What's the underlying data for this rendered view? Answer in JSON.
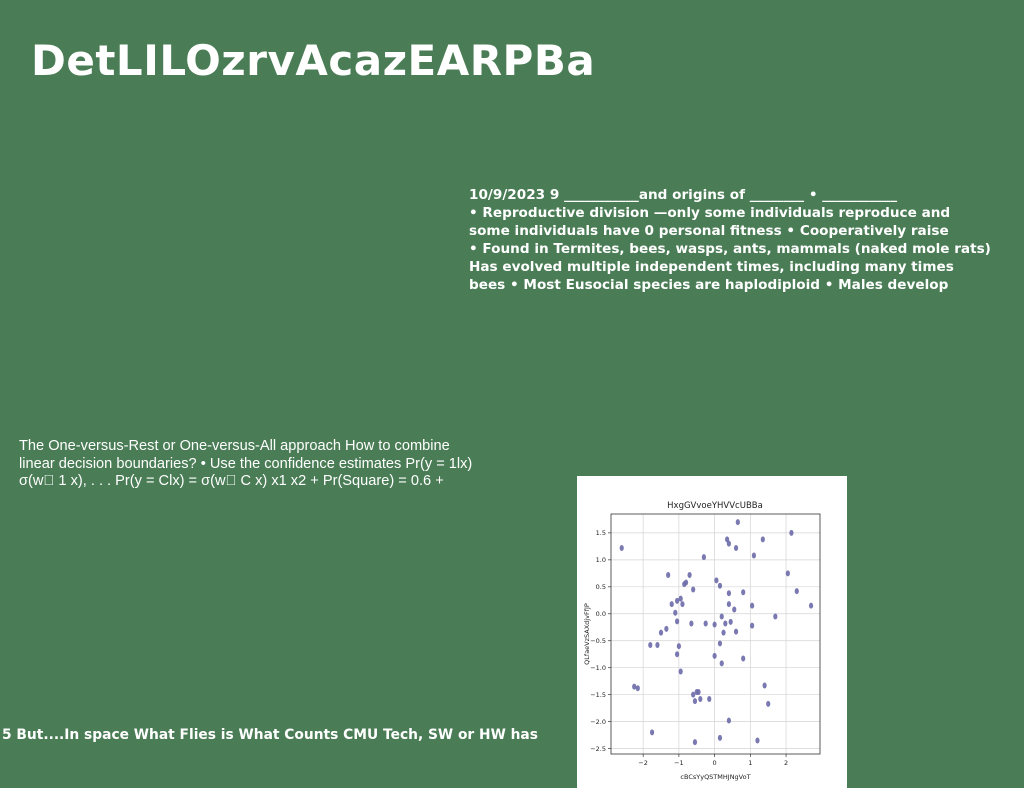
{
  "slide": {
    "title": "DetLILOzrvAcazEARPBa",
    "notes_lines": [
      "10/9/2023 9 ___________and origins of ________ • ___________",
      "• Reproductive division —only some individuals reproduce and",
      "some individuals have 0 personal fitness • Cooperatively raise",
      "• Found in Termites, bees, wasps, ants, mammals (naked mole rats)",
      "Has evolved multiple independent times, including many times",
      "bees • Most Eusocial species are haplodiploid • Males develop"
    ],
    "ovr_lines": [
      "The One-versus-Rest or One-versus-All approach How to combine",
      "linear decision boundaries? • Use the confidence estimates Pr(y = 1lx)",
      "σ(w⃞ 1 x), . . . Pr(y = Clx) = σ(w⃞ C x) x1 x2 + Pr(Square) = 0.6 +"
    ],
    "footer": "5 But....In space What Flies is What Counts CMU Tech, SW or HW has"
  },
  "chart_data": {
    "type": "scatter",
    "title": "HxgGVvoeYHVVcUBBa",
    "xlabel": "cBCsYyQSTMHJNgVoT",
    "ylabel": "QLfaeVzSAXdjvFfJP",
    "xlim": [
      -2.9,
      2.95
    ],
    "ylim": [
      -2.6,
      1.85
    ],
    "xticks": [
      -2,
      -1,
      0,
      1,
      2
    ],
    "yticks": [
      -2.5,
      -2.0,
      -1.5,
      -1.0,
      -0.5,
      0.0,
      0.5,
      1.0,
      1.5
    ],
    "grid": true,
    "color": "#6b6aa8",
    "points": [
      [
        -2.6,
        1.22
      ],
      [
        -2.25,
        -1.35
      ],
      [
        -2.15,
        -1.38
      ],
      [
        -1.8,
        -0.58
      ],
      [
        -1.6,
        -0.58
      ],
      [
        -1.75,
        -2.2
      ],
      [
        -1.5,
        -0.35
      ],
      [
        -1.35,
        -0.28
      ],
      [
        -1.3,
        0.72
      ],
      [
        -1.2,
        0.18
      ],
      [
        -1.1,
        0.02
      ],
      [
        -1.05,
        -0.14
      ],
      [
        -1.05,
        -0.75
      ],
      [
        -1.0,
        -0.6
      ],
      [
        -1.05,
        0.24
      ],
      [
        -0.95,
        0.28
      ],
      [
        -0.9,
        0.18
      ],
      [
        -0.85,
        0.55
      ],
      [
        -0.8,
        0.58
      ],
      [
        -0.7,
        0.72
      ],
      [
        -0.6,
        0.45
      ],
      [
        -0.65,
        -0.18
      ],
      [
        -0.95,
        -1.07
      ],
      [
        -0.6,
        -1.5
      ],
      [
        -0.5,
        -1.45
      ],
      [
        -0.45,
        -1.45
      ],
      [
        -0.55,
        -1.62
      ],
      [
        -0.4,
        -1.58
      ],
      [
        -0.3,
        1.05
      ],
      [
        -0.25,
        -0.18
      ],
      [
        -0.15,
        -1.58
      ],
      [
        -0.55,
        -2.38
      ],
      [
        0.0,
        -0.2
      ],
      [
        0.05,
        0.62
      ],
      [
        0.15,
        0.52
      ],
      [
        0.2,
        -0.05
      ],
      [
        0.25,
        -0.35
      ],
      [
        0.3,
        -0.18
      ],
      [
        0.35,
        1.38
      ],
      [
        0.4,
        1.3
      ],
      [
        0.4,
        0.38
      ],
      [
        0.4,
        0.18
      ],
      [
        0.45,
        -0.15
      ],
      [
        0.55,
        0.08
      ],
      [
        0.6,
        1.22
      ],
      [
        0.6,
        -0.33
      ],
      [
        0.65,
        1.7
      ],
      [
        0.8,
        0.4
      ],
      [
        0.0,
        -0.78
      ],
      [
        0.15,
        -0.55
      ],
      [
        0.2,
        -0.92
      ],
      [
        0.8,
        -0.83
      ],
      [
        1.05,
        0.15
      ],
      [
        1.05,
        -0.22
      ],
      [
        1.1,
        1.08
      ],
      [
        1.35,
        1.38
      ],
      [
        1.4,
        -1.33
      ],
      [
        1.5,
        -1.67
      ],
      [
        1.7,
        -0.05
      ],
      [
        0.4,
        -1.98
      ],
      [
        0.15,
        -2.3
      ],
      [
        1.2,
        -2.35
      ],
      [
        2.05,
        0.75
      ],
      [
        2.15,
        1.5
      ],
      [
        2.3,
        0.42
      ],
      [
        2.7,
        0.15
      ]
    ]
  }
}
